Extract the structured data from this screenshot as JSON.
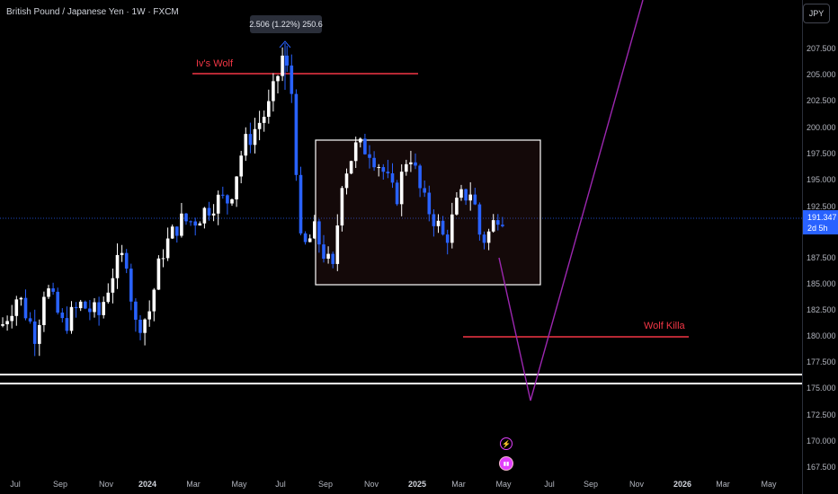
{
  "header": {
    "symbol": "British Pound / Japanese Yen",
    "interval": "1W",
    "exchange": "FXCM",
    "title_text": "British Pound / Japanese Yen · 1W · FXCM"
  },
  "price_scale": {
    "currency": "JPY",
    "labels": [
      "207.500",
      "205.000",
      "202.500",
      "200.000",
      "197.500",
      "195.000",
      "192.500",
      "187.500",
      "185.000",
      "182.500",
      "180.000",
      "177.500",
      "175.000",
      "172.500",
      "170.000",
      "167.500"
    ],
    "current_price": "191.347",
    "countdown": "2d 5h"
  },
  "time_axis": {
    "labels": [
      {
        "text": "Jul",
        "major": false
      },
      {
        "text": "Sep",
        "major": false
      },
      {
        "text": "Nov",
        "major": false
      },
      {
        "text": "2024",
        "major": true
      },
      {
        "text": "Mar",
        "major": false
      },
      {
        "text": "May",
        "major": false
      },
      {
        "text": "Jul",
        "major": false
      },
      {
        "text": "Sep",
        "major": false
      },
      {
        "text": "Nov",
        "major": false
      },
      {
        "text": "2025",
        "major": true
      },
      {
        "text": "Mar",
        "major": false
      },
      {
        "text": "May",
        "major": false
      },
      {
        "text": "Jul",
        "major": false
      },
      {
        "text": "Sep",
        "major": false
      },
      {
        "text": "Nov",
        "major": false
      },
      {
        "text": "2026",
        "major": true
      },
      {
        "text": "Mar",
        "major": false
      },
      {
        "text": "May",
        "major": false
      }
    ]
  },
  "annotations": {
    "top_label": "Iv's Wolf",
    "bottom_label": "Wolf Killa",
    "measure_text": "2.506 (1.22%) 250.6"
  },
  "colors": {
    "background": "#000000",
    "up_candle": "#ffffff",
    "down_candle": "#2962ff",
    "annotation_line": "#f23645",
    "projection": "#9c27b0",
    "current_price": "#2962ff"
  },
  "icons": {
    "event_flash": "lightning-icon",
    "event_flags": "earnings-flags-icon"
  }
}
